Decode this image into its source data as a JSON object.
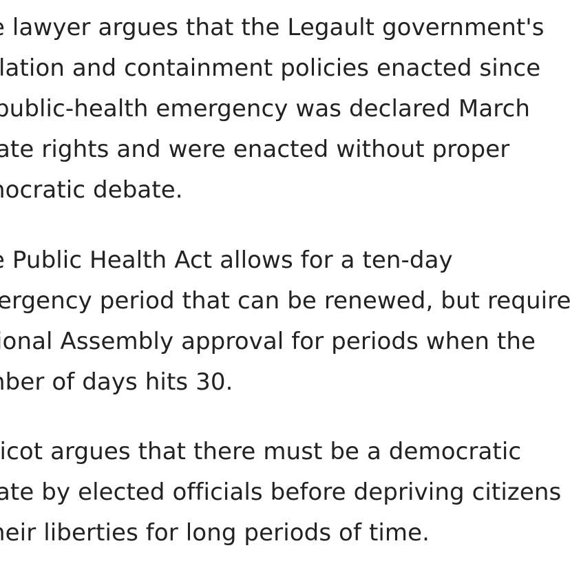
{
  "article": {
    "paragraphs": [
      {
        "lines": [
          "e lawyer argues that the Legault government's",
          "lation and containment policies enacted since",
          "public-health emergency was declared March",
          "ate rights and were enacted without proper",
          "nocratic debate."
        ]
      },
      {
        "lines": [
          "e Public Health Act allows for a ten-day",
          "ergency period that can be renewed, but requires",
          "ional Assembly approval for periods when the",
          "nber of days hits 30."
        ]
      },
      {
        "lines": [
          "licot argues that there must be a democratic",
          "ate by elected officials before depriving citizens",
          "heir liberties for long periods of time."
        ]
      }
    ]
  }
}
